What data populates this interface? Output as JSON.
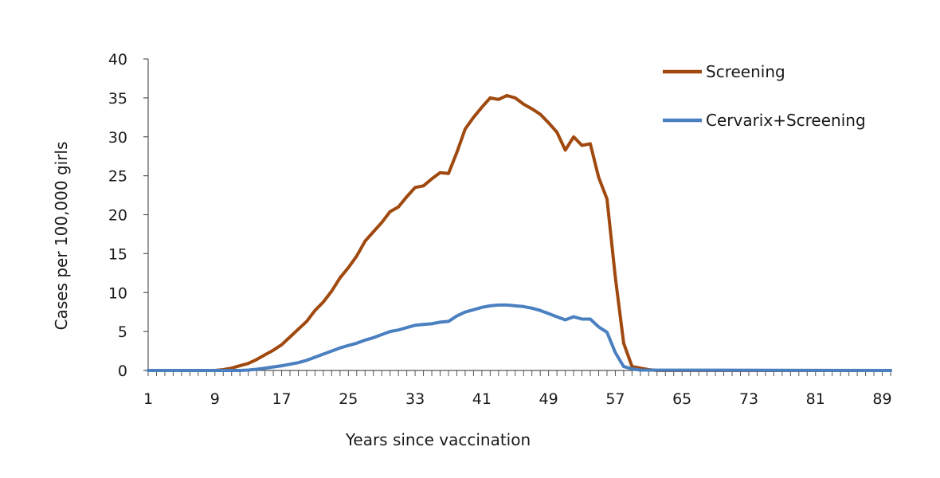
{
  "chart_data": {
    "type": "line",
    "title": "",
    "xlabel": "Years since vaccination",
    "ylabel": "Cases per 100,000 girls",
    "xlim": [
      1,
      90
    ],
    "ylim": [
      0,
      40
    ],
    "y_ticks": [
      0,
      5,
      10,
      15,
      20,
      25,
      30,
      35,
      40
    ],
    "x_tick_labels": [
      1,
      9,
      17,
      25,
      33,
      41,
      49,
      57,
      65,
      73,
      81,
      89
    ],
    "grid": false,
    "legend_position": "top-right",
    "series": [
      {
        "name": "Screening",
        "color": "#a0490f",
        "x": [
          1,
          8,
          9,
          10,
          11,
          12,
          13,
          14,
          15,
          16,
          17,
          18,
          19,
          20,
          21,
          22,
          23,
          24,
          25,
          26,
          27,
          28,
          29,
          30,
          31,
          32,
          33,
          34,
          35,
          36,
          37,
          38,
          39,
          40,
          41,
          42,
          43,
          44,
          45,
          46,
          47,
          48,
          49,
          50,
          51,
          52,
          53,
          54,
          55,
          56,
          57,
          58,
          59,
          60,
          61,
          62,
          90
        ],
        "y": [
          0,
          0,
          0,
          0.1,
          0.3,
          0.6,
          0.9,
          1.4,
          2.0,
          2.6,
          3.3,
          4.3,
          5.3,
          6.3,
          7.7,
          8.8,
          10.2,
          11.9,
          13.2,
          14.7,
          16.6,
          17.8,
          19.0,
          20.4,
          21.0,
          22.3,
          23.5,
          23.7,
          24.6,
          25.4,
          25.3,
          28.0,
          31.0,
          32.5,
          33.8,
          35.0,
          34.8,
          35.3,
          35.0,
          34.2,
          33.6,
          32.9,
          31.8,
          30.6,
          28.3,
          30.0,
          28.9,
          29.1,
          24.8,
          22.0,
          12.0,
          3.5,
          0.5,
          0.3,
          0.1,
          0,
          0
        ]
      },
      {
        "name": "Cervarix+Screening",
        "color": "#4a7fc0",
        "x": [
          1,
          12,
          13,
          14,
          15,
          16,
          17,
          18,
          19,
          20,
          21,
          22,
          23,
          24,
          25,
          26,
          27,
          28,
          29,
          30,
          31,
          32,
          33,
          34,
          35,
          36,
          37,
          38,
          39,
          40,
          41,
          42,
          43,
          44,
          45,
          46,
          47,
          48,
          49,
          50,
          51,
          52,
          53,
          54,
          55,
          56,
          57,
          58,
          59,
          60,
          90
        ],
        "y": [
          0,
          0,
          0.05,
          0.15,
          0.3,
          0.45,
          0.6,
          0.8,
          1.0,
          1.3,
          1.7,
          2.1,
          2.5,
          2.9,
          3.2,
          3.5,
          3.9,
          4.2,
          4.6,
          5.0,
          5.2,
          5.5,
          5.8,
          5.9,
          6.0,
          6.2,
          6.3,
          7.0,
          7.5,
          7.8,
          8.1,
          8.3,
          8.4,
          8.4,
          8.3,
          8.2,
          8.0,
          7.7,
          7.3,
          6.9,
          6.5,
          6.9,
          6.6,
          6.6,
          5.6,
          4.9,
          2.3,
          0.5,
          0.2,
          0.05,
          0
        ]
      }
    ]
  }
}
